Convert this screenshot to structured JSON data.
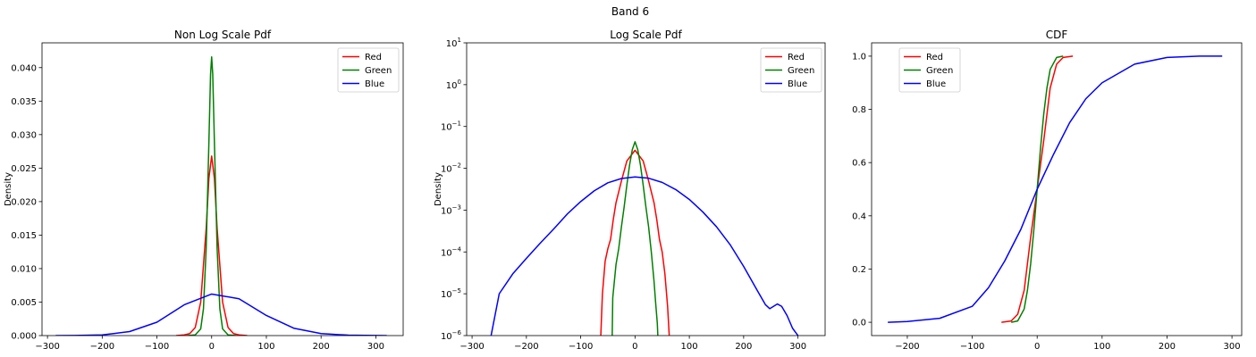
{
  "figure": {
    "suptitle": "Band 6"
  },
  "colors": {
    "Red": "#ff0000",
    "Green": "#008000",
    "Blue": "#0000ff"
  },
  "chart_data": [
    {
      "type": "line",
      "title": "Non Log Scale Pdf",
      "xlabel": "",
      "ylabel": "Density",
      "xlim": [
        -310,
        350
      ],
      "ylim": [
        0,
        0.0437
      ],
      "yscale": "linear",
      "xticks": [
        -300,
        -200,
        -100,
        0,
        100,
        200,
        300
      ],
      "xtick_labels": [
        "−300",
        "−200",
        "−100",
        "0",
        "100",
        "200",
        "300"
      ],
      "yticks": [
        0,
        0.005,
        0.01,
        0.015,
        0.02,
        0.025,
        0.03,
        0.035,
        0.04
      ],
      "ytick_labels": [
        "0.000",
        "0.005",
        "0.010",
        "0.015",
        "0.020",
        "0.025",
        "0.030",
        "0.035",
        "0.040"
      ],
      "legend": {
        "position": "top-right",
        "entries": [
          "Red",
          "Green",
          "Blue"
        ]
      },
      "series": [
        {
          "name": "Red",
          "color": "#ff0000",
          "x": [
            -65,
            -50,
            -40,
            -30,
            -20,
            -10,
            -5,
            0,
            5,
            10,
            20,
            30,
            40,
            50,
            65
          ],
          "y": [
            0,
            0.0001,
            0.0003,
            0.0012,
            0.005,
            0.016,
            0.0235,
            0.0268,
            0.0235,
            0.016,
            0.005,
            0.0012,
            0.0003,
            0.0001,
            0
          ]
        },
        {
          "name": "Green",
          "color": "#008000",
          "x": [
            -45,
            -30,
            -20,
            -15,
            -10,
            -5,
            -2,
            0,
            2,
            5,
            10,
            15,
            20,
            30,
            45
          ],
          "y": [
            0,
            0.0001,
            0.001,
            0.004,
            0.013,
            0.029,
            0.039,
            0.0416,
            0.039,
            0.029,
            0.013,
            0.004,
            0.001,
            0.0001,
            0
          ]
        },
        {
          "name": "Blue",
          "color": "#0000ff",
          "x": [
            -285,
            -250,
            -200,
            -150,
            -100,
            -50,
            0,
            50,
            100,
            150,
            200,
            250,
            280,
            320
          ],
          "y": [
            0,
            1e-05,
            0.0001,
            0.0006,
            0.002,
            0.0046,
            0.0062,
            0.0055,
            0.003,
            0.0011,
            0.0003,
            6e-05,
            3e-05,
            0
          ]
        }
      ]
    },
    {
      "type": "line",
      "title": "Log Scale Pdf",
      "xlabel": "",
      "ylabel": "Density",
      "xlim": [
        -310,
        350
      ],
      "ylim": [
        1e-06,
        10
      ],
      "yscale": "log",
      "xticks": [
        -300,
        -200,
        -100,
        0,
        100,
        200,
        300
      ],
      "xtick_labels": [
        "−300",
        "−200",
        "−100",
        "0",
        "100",
        "200",
        "300"
      ],
      "yticks": [
        1e-06,
        1e-05,
        0.0001,
        0.001,
        0.01,
        0.1,
        1,
        10
      ],
      "ytick_bases": [
        "10",
        "10",
        "10",
        "10",
        "10",
        "10",
        "10",
        "10"
      ],
      "ytick_exps": [
        "−6",
        "−5",
        "−4",
        "−3",
        "−2",
        "−1",
        "0",
        "1"
      ],
      "legend": {
        "position": "top-right",
        "entries": [
          "Red",
          "Green",
          "Blue"
        ]
      },
      "series": [
        {
          "name": "Red",
          "color": "#ff0000",
          "x": [
            -63,
            -60,
            -55,
            -50,
            -45,
            -40,
            -35,
            -25,
            -15,
            0,
            15,
            25,
            35,
            40,
            45,
            50,
            55,
            60,
            63
          ],
          "y": [
            1e-06,
            1e-05,
            6e-05,
            0.00012,
            0.0002,
            0.0006,
            0.0015,
            0.005,
            0.015,
            0.027,
            0.015,
            0.005,
            0.0015,
            0.0006,
            0.0002,
            0.0001,
            3e-05,
            5e-06,
            1e-06
          ]
        },
        {
          "name": "Green",
          "color": "#008000",
          "x": [
            -42,
            -41,
            -38,
            -35,
            -30,
            -25,
            -20,
            -15,
            -10,
            -5,
            0,
            5,
            10,
            15,
            20,
            25,
            30,
            35,
            38,
            41,
            42
          ],
          "y": [
            1e-06,
            8e-06,
            2e-05,
            5e-05,
            0.00012,
            0.0004,
            0.0012,
            0.004,
            0.012,
            0.028,
            0.043,
            0.028,
            0.012,
            0.004,
            0.0012,
            0.0004,
            0.0001,
            2e-05,
            6e-06,
            2e-06,
            1e-06
          ]
        },
        {
          "name": "Blue",
          "color": "#0000ff",
          "x": [
            -265,
            -250,
            -225,
            -200,
            -175,
            -150,
            -125,
            -100,
            -75,
            -50,
            -25,
            0,
            25,
            50,
            75,
            100,
            125,
            150,
            175,
            200,
            225,
            240,
            248,
            255,
            262,
            270,
            280,
            290,
            300
          ],
          "y": [
            1e-06,
            1e-05,
            3e-05,
            7e-05,
            0.00016,
            0.00035,
            0.0008,
            0.0016,
            0.0029,
            0.0045,
            0.0057,
            0.0062,
            0.0058,
            0.0046,
            0.0031,
            0.0018,
            0.0009,
            0.0004,
            0.00015,
            4.5e-05,
            1.2e-05,
            5.5e-06,
            4.4e-06,
            5e-06,
            5.7e-06,
            5e-06,
            3e-06,
            1.5e-06,
            1e-06
          ]
        }
      ]
    },
    {
      "type": "line",
      "title": "CDF",
      "xlabel": "",
      "ylabel": "",
      "xlim": [
        -255,
        315
      ],
      "ylim": [
        -0.05,
        1.05
      ],
      "yscale": "linear",
      "xticks": [
        -200,
        -100,
        0,
        100,
        200,
        300
      ],
      "xtick_labels": [
        "−200",
        "−100",
        "0",
        "100",
        "200",
        "300"
      ],
      "yticks": [
        0,
        0.2,
        0.4,
        0.6,
        0.8,
        1.0
      ],
      "ytick_labels": [
        "0.0",
        "0.2",
        "0.4",
        "0.6",
        "0.8",
        "1.0"
      ],
      "legend": {
        "position": "top-left",
        "entries": [
          "Red",
          "Green",
          "Blue"
        ]
      },
      "series": [
        {
          "name": "Red",
          "color": "#ff0000",
          "x": [
            -55,
            -40,
            -30,
            -20,
            -10,
            0,
            10,
            20,
            30,
            40,
            55
          ],
          "y": [
            0,
            0.005,
            0.03,
            0.12,
            0.32,
            0.5,
            0.68,
            0.88,
            0.97,
            0.995,
            1.0
          ]
        },
        {
          "name": "Green",
          "color": "#008000",
          "x": [
            -40,
            -30,
            -20,
            -15,
            -10,
            -5,
            0,
            5,
            10,
            15,
            20,
            30,
            40
          ],
          "y": [
            0,
            0.005,
            0.05,
            0.12,
            0.22,
            0.35,
            0.5,
            0.65,
            0.78,
            0.88,
            0.95,
            0.995,
            1.0
          ]
        },
        {
          "name": "Blue",
          "color": "#0000ff",
          "x": [
            -230,
            -200,
            -150,
            -100,
            -75,
            -50,
            -25,
            0,
            25,
            50,
            75,
            100,
            150,
            200,
            250,
            285
          ],
          "y": [
            0,
            0.003,
            0.015,
            0.06,
            0.13,
            0.23,
            0.35,
            0.5,
            0.63,
            0.75,
            0.84,
            0.9,
            0.97,
            0.995,
            1.0,
            1.0
          ]
        }
      ]
    }
  ]
}
